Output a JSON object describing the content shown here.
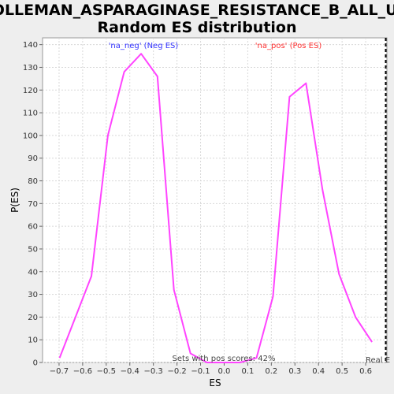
{
  "chart_data": {
    "type": "line",
    "title_line1": "HOLLEMAN_ASPARAGINASE_RESISTANCE_B_ALL_UP:",
    "title_line2": "Random ES distribution",
    "xlabel": "ES",
    "ylabel": "P(ES)",
    "xlim": [
      -0.77,
      0.69
    ],
    "ylim": [
      0,
      143
    ],
    "x_ticks": [
      -0.7,
      -0.6,
      -0.5,
      -0.4,
      -0.3,
      -0.2,
      -0.1,
      0.0,
      0.1,
      0.2,
      0.3,
      0.4,
      0.5,
      0.6
    ],
    "x_tick_labels": [
      "−0.7",
      "−0.6",
      "−0.5",
      "−0.4",
      "−0.3",
      "−0.2",
      "−0.1",
      "0.0",
      "0.1",
      "0.2",
      "0.3",
      "0.4",
      "0.5",
      "0.6"
    ],
    "y_ticks": [
      0,
      10,
      20,
      30,
      40,
      50,
      60,
      70,
      80,
      90,
      100,
      110,
      120,
      130,
      140
    ],
    "grid": true,
    "series": [
      {
        "color": "#ff44ff",
        "x": [
          -0.698,
          -0.563,
          -0.493,
          -0.424,
          -0.352,
          -0.283,
          -0.213,
          -0.143,
          -0.073,
          -0.003,
          0.067,
          0.137,
          0.207,
          0.277,
          0.347,
          0.417,
          0.487,
          0.557,
          0.627
        ],
        "y": [
          2,
          38,
          100,
          128,
          136,
          126,
          32,
          4,
          0,
          0,
          0,
          2,
          29,
          117,
          123,
          76,
          39,
          20,
          9
        ]
      }
    ],
    "annotations": {
      "neg_label": "'na_neg' (Neg ES)",
      "neg_color": "#3333ff",
      "pos_label": "'na_pos' (Pos ES)",
      "pos_color": "#ff3333",
      "sets_label": "Sets with pos scores: 42%",
      "real_label": "Real E"
    },
    "real_es": 0.685
  }
}
